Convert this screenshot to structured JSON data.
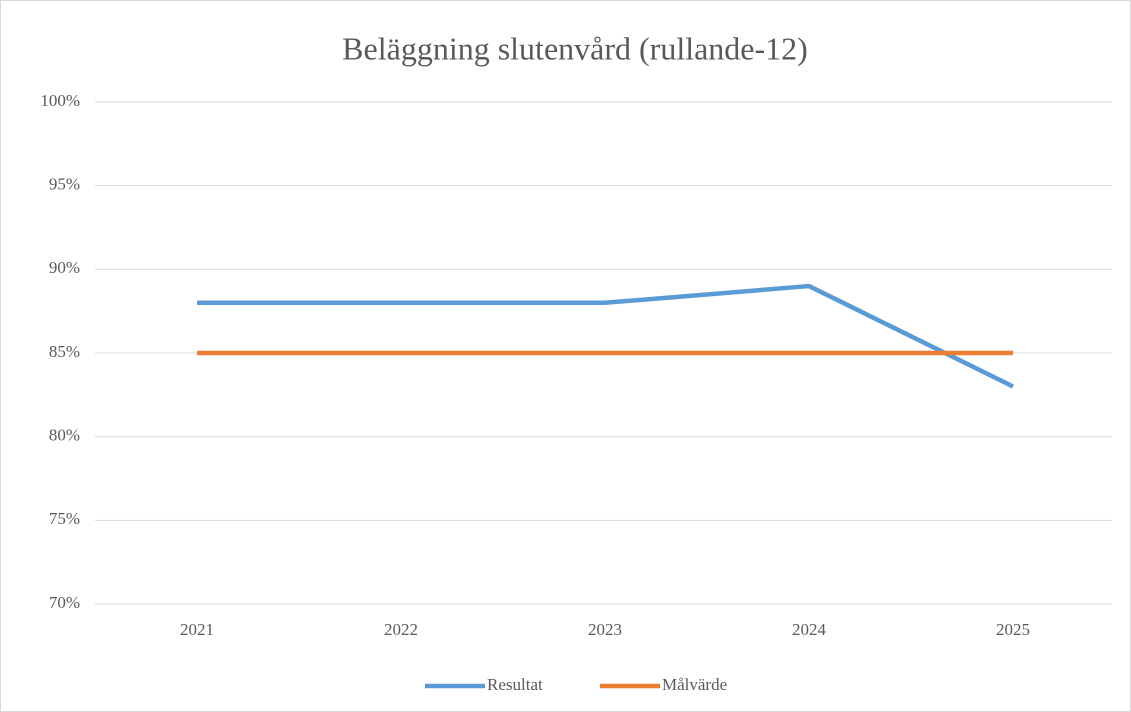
{
  "chart_data": {
    "type": "line",
    "title": "Beläggning slutenvård (rullande-12)",
    "categories": [
      "2021",
      "2022",
      "2023",
      "2024",
      "2025"
    ],
    "series": [
      {
        "name": "Resultat",
        "color": "#5b9bd5",
        "values": [
          88,
          88,
          88,
          89,
          83
        ]
      },
      {
        "name": "Målvärde",
        "color": "#ed7d31",
        "values": [
          85,
          85,
          85,
          85,
          85
        ]
      }
    ],
    "ylim": [
      70,
      100
    ],
    "yticks": [
      {
        "value": 70,
        "label": "70%"
      },
      {
        "value": 75,
        "label": "75%"
      },
      {
        "value": 80,
        "label": "80%"
      },
      {
        "value": 85,
        "label": "85%"
      },
      {
        "value": 90,
        "label": "90%"
      },
      {
        "value": 95,
        "label": "95%"
      },
      {
        "value": 100,
        "label": "100%"
      }
    ],
    "grid": true,
    "legend": "bottom"
  }
}
